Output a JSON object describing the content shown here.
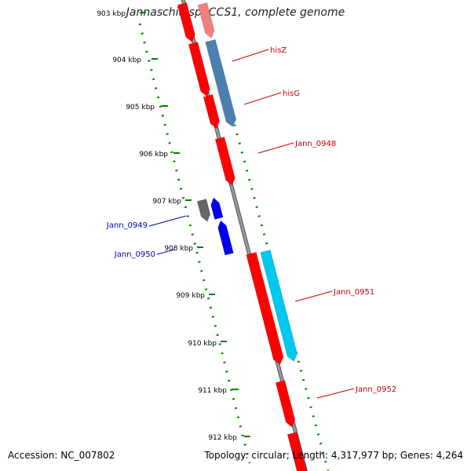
{
  "title": "Jannaschia sp. CCS1, complete genome",
  "footer": {
    "accession": "Accession: NC_007802",
    "summary": "Topology: circular; Length: 4,317,977 bp; Genes: 4,264"
  },
  "scale_labels": [
    "903 kbp",
    "904 kbp",
    "905 kbp",
    "906 kbp",
    "907 kbp",
    "908 kbp",
    "909 kbp",
    "910 kbp",
    "911 kbp",
    "912 kbp"
  ],
  "gene_labels": [
    {
      "name": "hisZ",
      "color": "#cc0000"
    },
    {
      "name": "hisG",
      "color": "#cc0000"
    },
    {
      "name": "Jann_0948",
      "color": "#cc0000"
    },
    {
      "name": "Jann_0949",
      "color": "#0000aa"
    },
    {
      "name": "Jann_0950",
      "color": "#0000aa"
    },
    {
      "name": "Jann_0951",
      "color": "#cc0000"
    },
    {
      "name": "Jann_0952",
      "color": "#cc0000"
    }
  ],
  "colors": {
    "gene_red": "#ff0000",
    "gene_pink": "#f08080",
    "gene_steelblue": "#4a7fb0",
    "gene_blue": "#0000ee",
    "gene_cyan": "#00c8f0",
    "gene_gray": "#666666",
    "backbone": "#808080",
    "tick_green": "#008000"
  }
}
